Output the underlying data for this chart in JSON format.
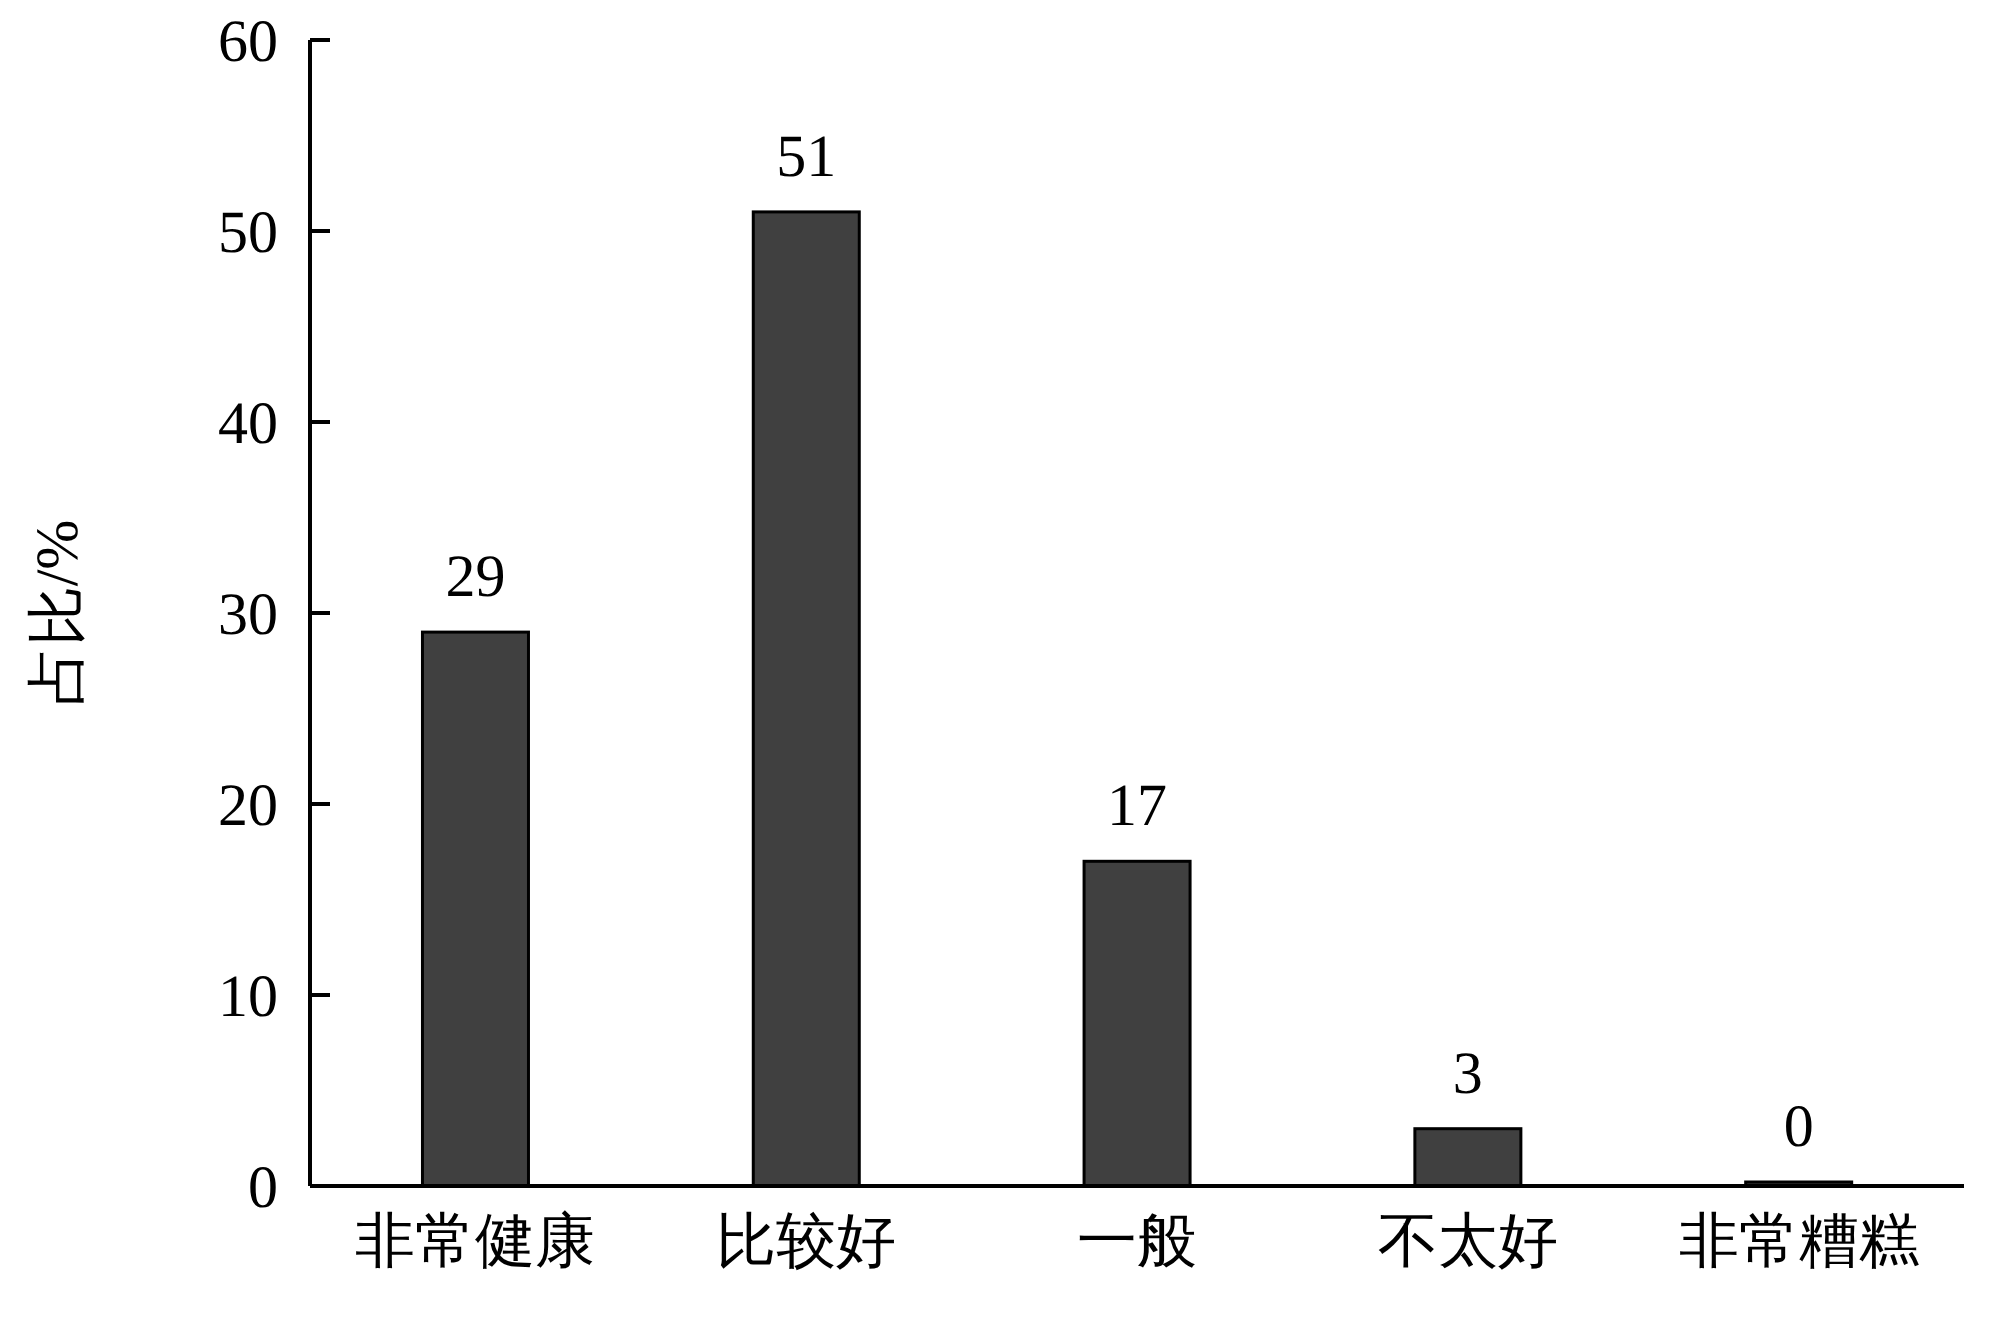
{
  "chart_data": {
    "type": "bar",
    "ylabel": "占比/%",
    "categories": [
      "非常健康",
      "比较好",
      "一般",
      "不太好",
      "非常糟糕"
    ],
    "values": [
      29,
      51,
      17,
      3,
      0
    ],
    "color": "#404040",
    "ylim": [
      0,
      60
    ],
    "yticks": [
      0,
      10,
      20,
      30,
      40,
      50,
      60
    ],
    "data_labels": true
  }
}
